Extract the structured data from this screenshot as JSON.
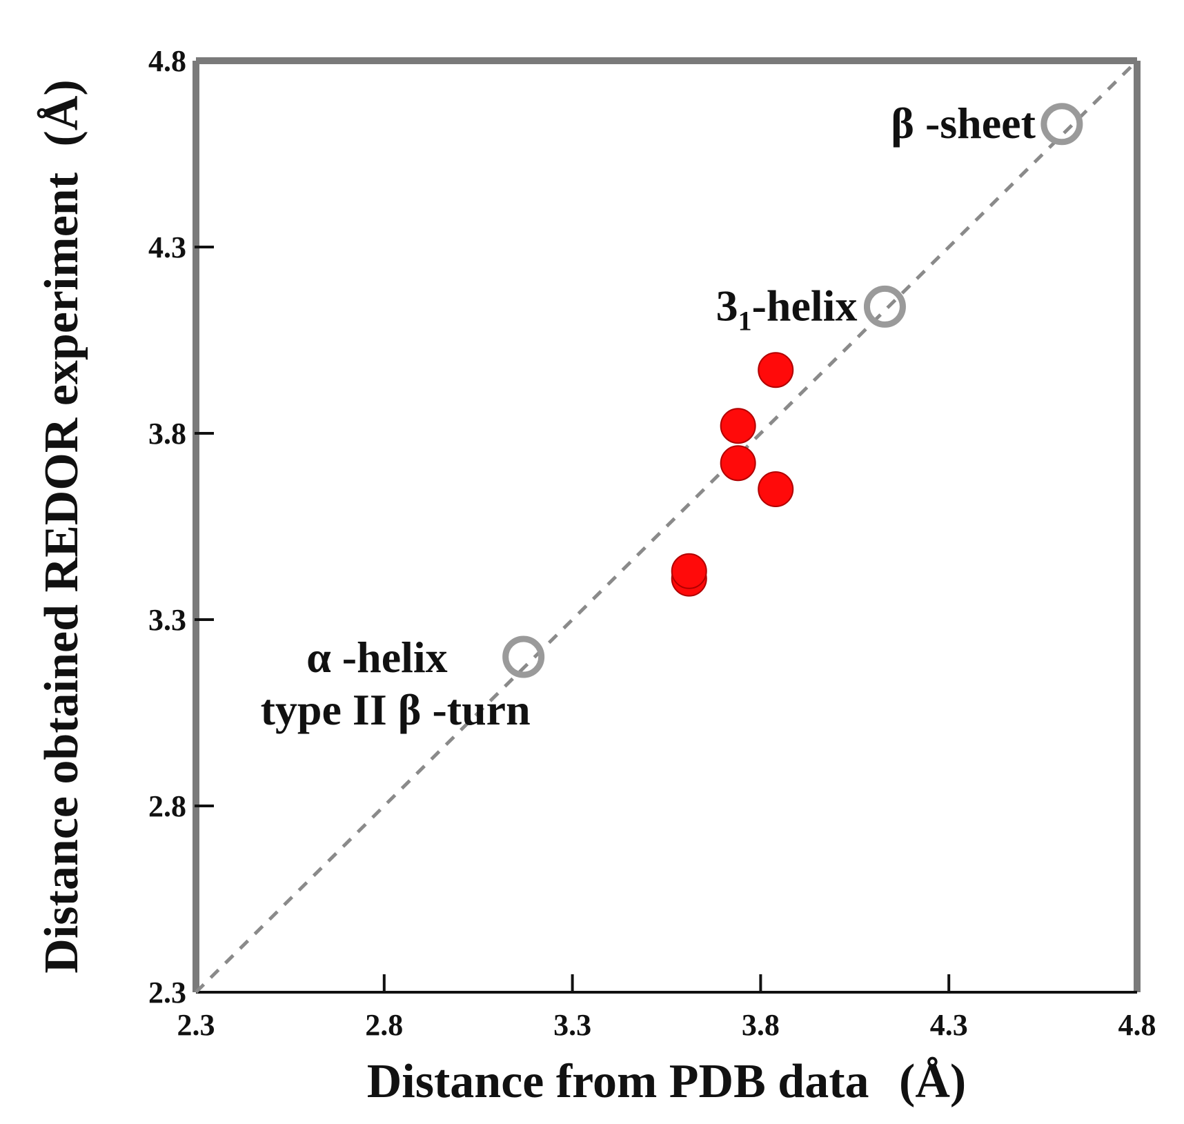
{
  "chart_data": {
    "type": "scatter",
    "title": "",
    "xlabel": "Distance from PDB data",
    "xlabel_unit": "(Å)",
    "ylabel": "Distance obtained REDOR experiment",
    "ylabel_unit": "(Å)",
    "xlim": [
      2.3,
      4.8
    ],
    "ylim": [
      2.3,
      4.8
    ],
    "xticks": [
      "2.3",
      "2.8",
      "3.3",
      "3.8",
      "4.3",
      "4.8"
    ],
    "yticks": [
      "2.3",
      "2.8",
      "3.3",
      "3.8",
      "4.3",
      "4.8"
    ],
    "grid": false,
    "reference_line": {
      "style": "dashed",
      "color": "#8a8a8a",
      "x": [
        2.3,
        4.8
      ],
      "y": [
        2.3,
        4.8
      ]
    },
    "series": [
      {
        "marker": "open-circle",
        "color": "#9a9a9a",
        "points": [
          {
            "x": 3.17,
            "y": 3.2,
            "label_lines": [
              "α -helix",
              "type II  β -turn"
            ]
          },
          {
            "x": 4.13,
            "y": 4.14,
            "label_main": "3",
            "label_sub": "1",
            "label_rest": "-helix"
          },
          {
            "x": 4.6,
            "y": 4.63,
            "label_lines": [
              "β -sheet"
            ]
          }
        ]
      },
      {
        "marker": "filled-circle",
        "color": "#ff0a0a",
        "points": [
          {
            "x": 3.84,
            "y": 3.97
          },
          {
            "x": 3.74,
            "y": 3.82
          },
          {
            "x": 3.74,
            "y": 3.72
          },
          {
            "x": 3.84,
            "y": 3.65
          },
          {
            "x": 3.61,
            "y": 3.41
          },
          {
            "x": 3.61,
            "y": 3.43
          }
        ]
      }
    ]
  }
}
